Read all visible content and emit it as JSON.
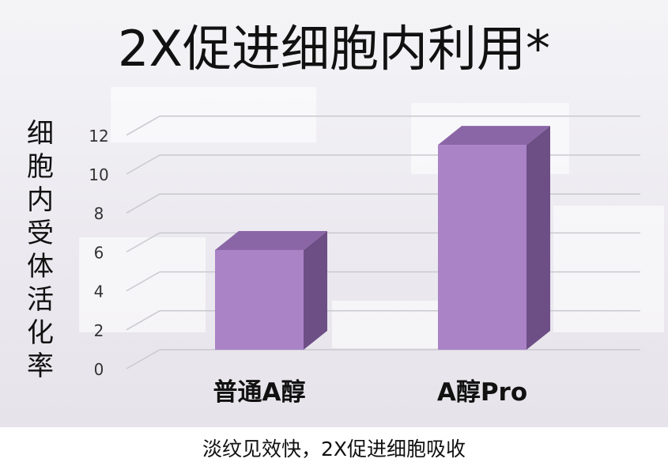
{
  "title": "2X促进细胞内利用*",
  "caption": "淡纹见效快，2X促进细胞吸收",
  "colors": {
    "bar_front": "#a983c6",
    "bar_top": "#8a66a6",
    "bar_side": "#6d4f86",
    "grid": "#c9c9cf",
    "axis_text": "#333333"
  },
  "chart_data": {
    "type": "bar",
    "style": "3d",
    "title": "2X促进细胞内利用*",
    "xlabel": "",
    "ylabel": "细胞内受体活化率",
    "categories": [
      "普通A醇",
      "A醇Pro"
    ],
    "values": [
      6.1,
      11.5
    ],
    "ylim": [
      0,
      12
    ],
    "yticks": [
      0,
      2,
      4,
      6,
      8,
      10,
      12
    ],
    "grid": true,
    "legend": "none"
  }
}
